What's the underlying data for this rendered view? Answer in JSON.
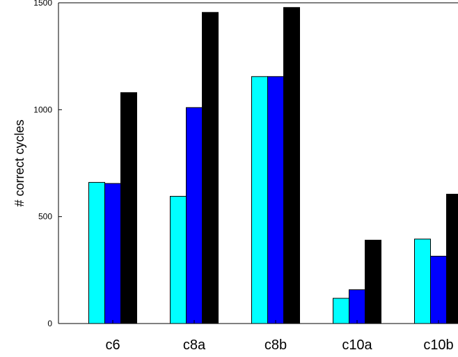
{
  "chart_data": {
    "type": "bar",
    "title": "",
    "xlabel": "",
    "ylabel": "# correct cycles",
    "ylim": [
      0,
      1500
    ],
    "yticks": [
      0,
      500,
      1000,
      1500
    ],
    "grid": false,
    "categories": [
      "c6",
      "c8a",
      "c8b",
      "c10a",
      "c10b"
    ],
    "series": [
      {
        "values": [
          660,
          595,
          1155,
          118,
          395
        ],
        "color": "#00ffff"
      },
      {
        "values": [
          655,
          1010,
          1155,
          158,
          315
        ],
        "color": "#0000ff"
      },
      {
        "values": [
          1080,
          1455,
          1478,
          390,
          605
        ],
        "color": "#000000"
      }
    ]
  }
}
